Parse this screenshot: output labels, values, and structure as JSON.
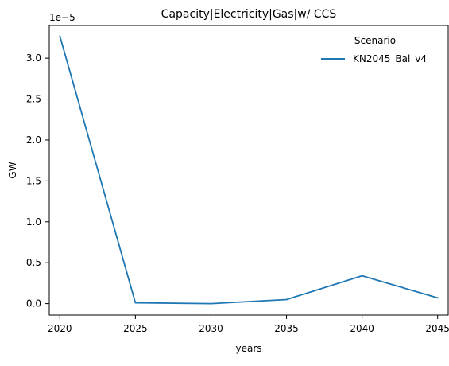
{
  "chart_data": {
    "type": "line",
    "title": "Capacity|Electricity|Gas|w/ CCS",
    "xlabel": "years",
    "ylabel": "GW",
    "offset_label": "1e−5",
    "x": [
      2020,
      2025,
      2030,
      2035,
      2040,
      2045
    ],
    "x_ticks": [
      2020,
      2025,
      2030,
      2035,
      2040,
      2045
    ],
    "y_ticks": [
      0.0,
      0.5,
      1.0,
      1.5,
      2.0,
      2.5,
      3.0
    ],
    "y_tick_labels": [
      "0.0",
      "0.5",
      "1.0",
      "1.5",
      "2.0",
      "2.5",
      "3.0"
    ],
    "xlim": [
      2019.3,
      2045.7
    ],
    "ylim": [
      -0.14,
      3.4
    ],
    "grid": false,
    "legend": {
      "title": "Scenario",
      "placement": "top-right"
    },
    "series": [
      {
        "name": "KN2045_Bal_v4",
        "color": "#1f77b4",
        "values": [
          3.27,
          0.01,
          0.0,
          0.05,
          0.34,
          0.07
        ]
      }
    ]
  }
}
